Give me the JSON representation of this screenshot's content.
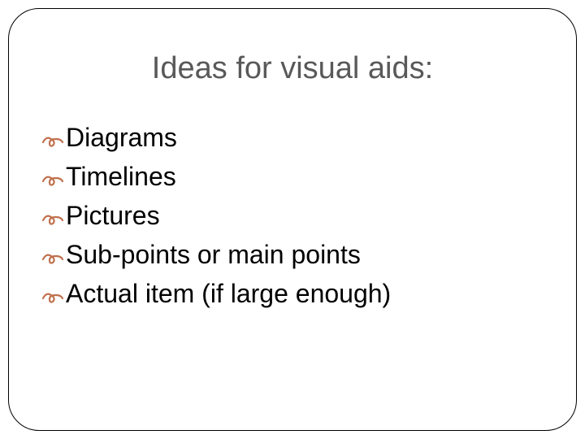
{
  "title": "Ideas for visual aids:",
  "bullet_glyph": "་",
  "bullet_color": "#c0714d",
  "title_color": "#595959",
  "text_color": "#000000",
  "border_color": "#000000",
  "background_color": "#ffffff",
  "border_radius": 38,
  "title_fontsize": 38,
  "item_fontsize": 32,
  "items": [
    "Diagrams",
    "Timelines",
    "Pictures",
    "Sub-points or main points",
    "Actual item (if large enough)"
  ]
}
